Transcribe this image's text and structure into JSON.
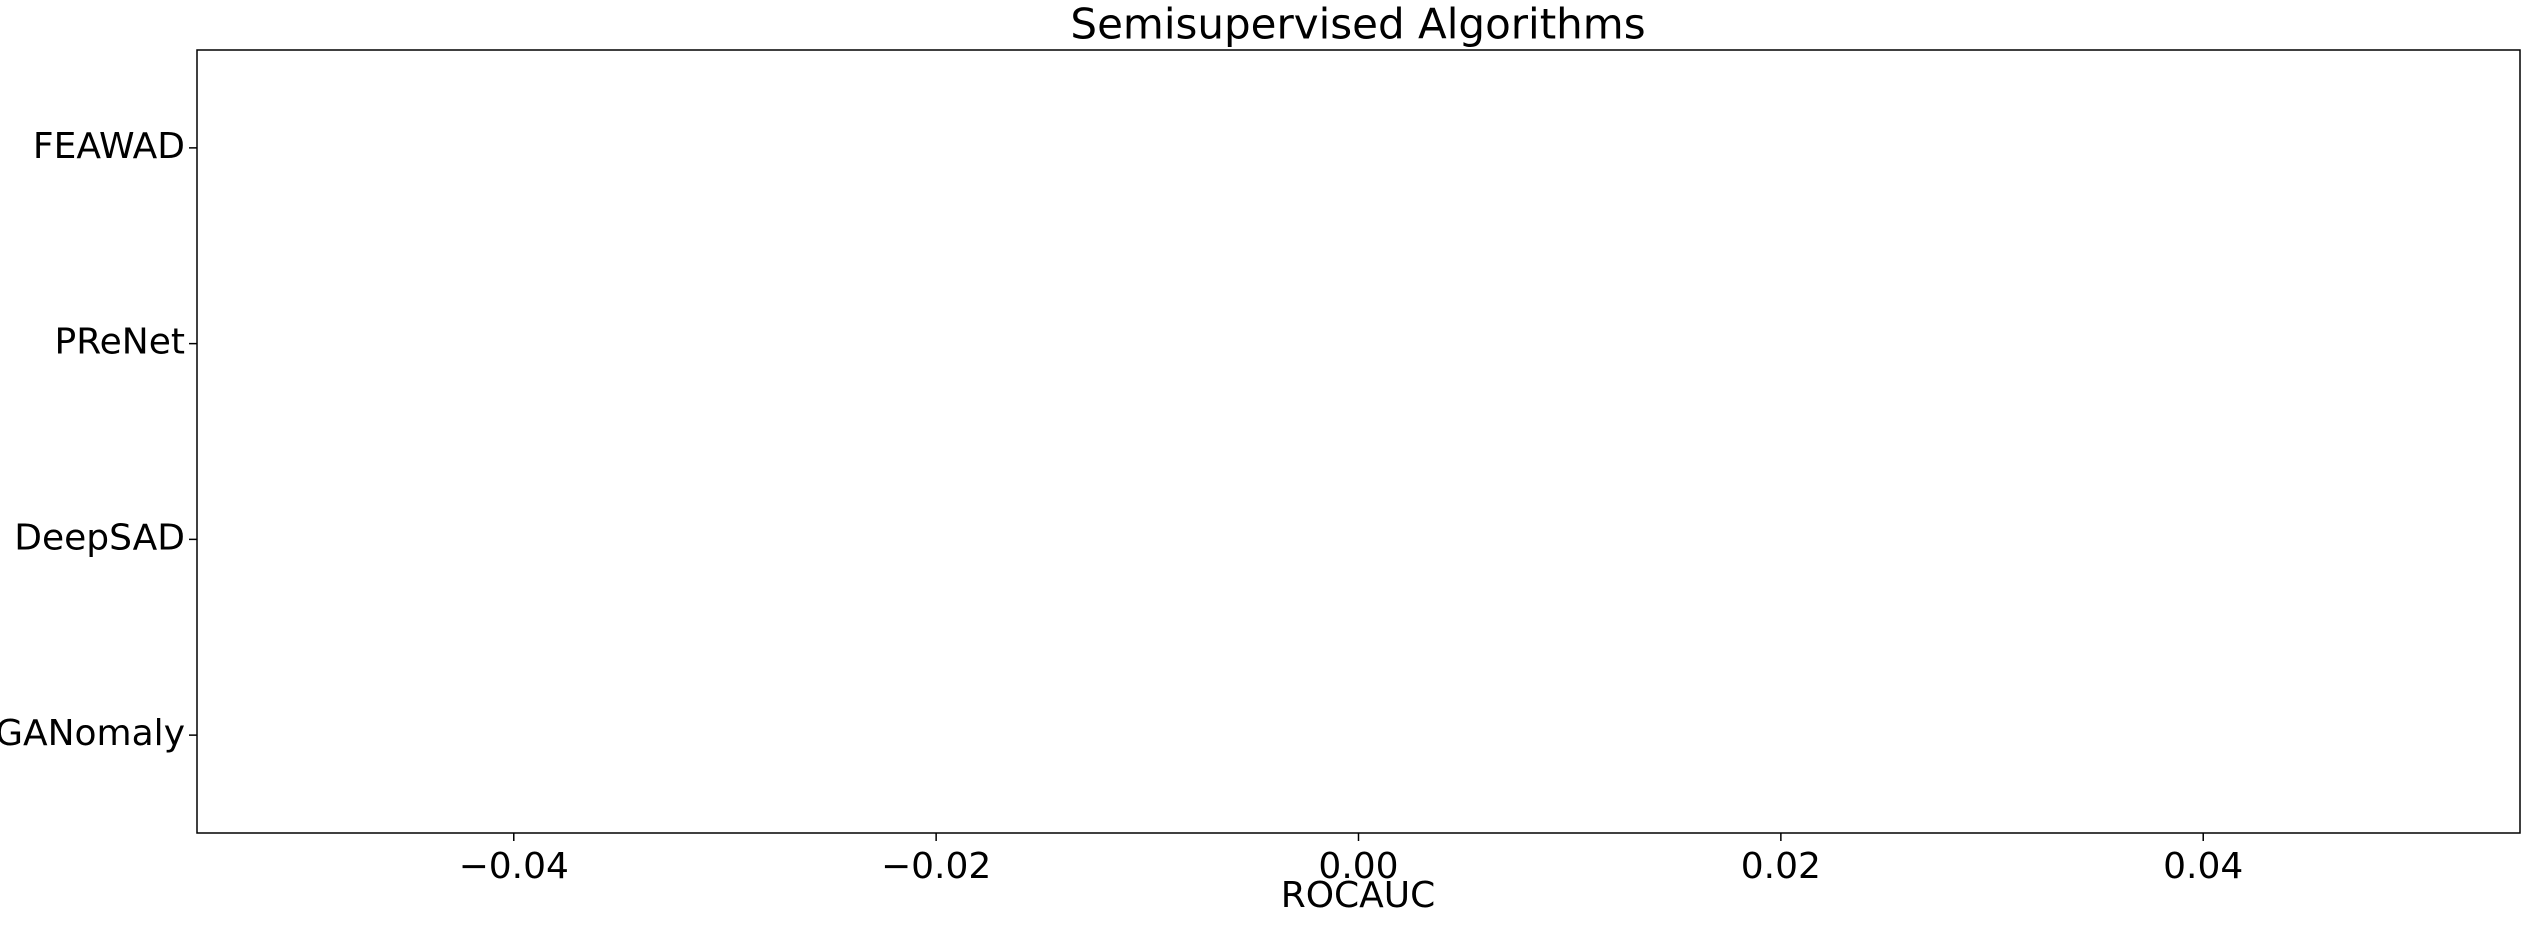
{
  "chart_data": {
    "type": "bar",
    "orientation": "horizontal",
    "title": "Semisupervised Algorithms",
    "x_label": "ROCAUC",
    "categories": [
      "FEAWAD",
      "PReNet",
      "DeepSAD",
      "GANomaly"
    ],
    "values": [
      null,
      null,
      null,
      null
    ],
    "color": "#1f77b4",
    "xlim": [
      -0.055,
      0.055
    ],
    "xticks": [
      {
        "value": -0.04,
        "label": "−0.04"
      },
      {
        "value": -0.02,
        "label": "−0.02"
      },
      {
        "value": 0,
        "label": "0.00"
      },
      {
        "value": 0.02,
        "label": "0.02"
      },
      {
        "value": 0.04,
        "label": "0.04"
      }
    ],
    "grid": false
  }
}
